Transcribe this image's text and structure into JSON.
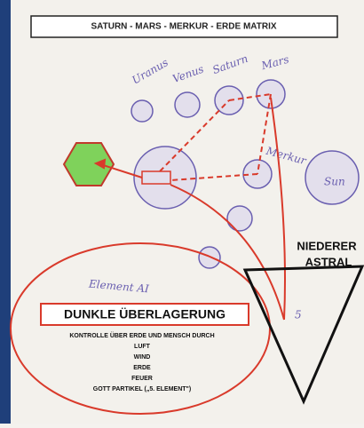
{
  "header": {
    "title": "SATURN - MARS - MERKUR - ERDE  MATRIX"
  },
  "planets": {
    "uranus": "Uranus",
    "venus": "Venus",
    "saturn": "Saturn",
    "mars": "Mars",
    "merkur": "Merkur",
    "sun": "Sun"
  },
  "astral": {
    "line1": "NIEDERER",
    "line2": "ASTRAL"
  },
  "handwriting": {
    "element": "Element AI",
    "number": "5"
  },
  "overlay": {
    "title": "DUNKLE ÜBERLAGERUNG",
    "lines": [
      "KONTROLLE ÜBER ERDE UND MENSCH DURCH",
      "LUFT",
      "WIND",
      "ERDE",
      "FEUER",
      "GOTT PARTIKEL („5. ELEMENT\")"
    ]
  }
}
